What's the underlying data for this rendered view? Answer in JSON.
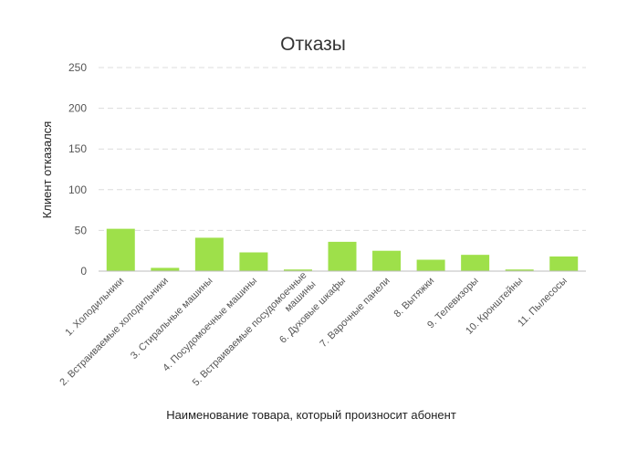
{
  "chart_data": {
    "type": "bar",
    "title": "Отказы",
    "xlabel": "Наименование товара, который произносит абонент",
    "ylabel": "Клиент отказался",
    "ylim": [
      0,
      250
    ],
    "yticks": [
      "0",
      "50",
      "100",
      "150",
      "200",
      "250"
    ],
    "grid": true,
    "categories": [
      "1. Холодильники",
      "2. Встраиваемые холодильники",
      "3. Стиральные машины",
      "4. Посудомоечные машины",
      "5. Встраиваемые посудомоечные машины",
      "6. Духовые шкафы",
      "7. Варочные панели",
      "8. Вытяжки",
      "9. Телевизоры",
      "10. Кронштейны",
      "11. Пылесосы"
    ],
    "values": [
      52,
      4,
      41,
      23,
      2,
      36,
      25,
      14,
      20,
      2,
      18
    ],
    "bar_color": "#9ee04a"
  }
}
